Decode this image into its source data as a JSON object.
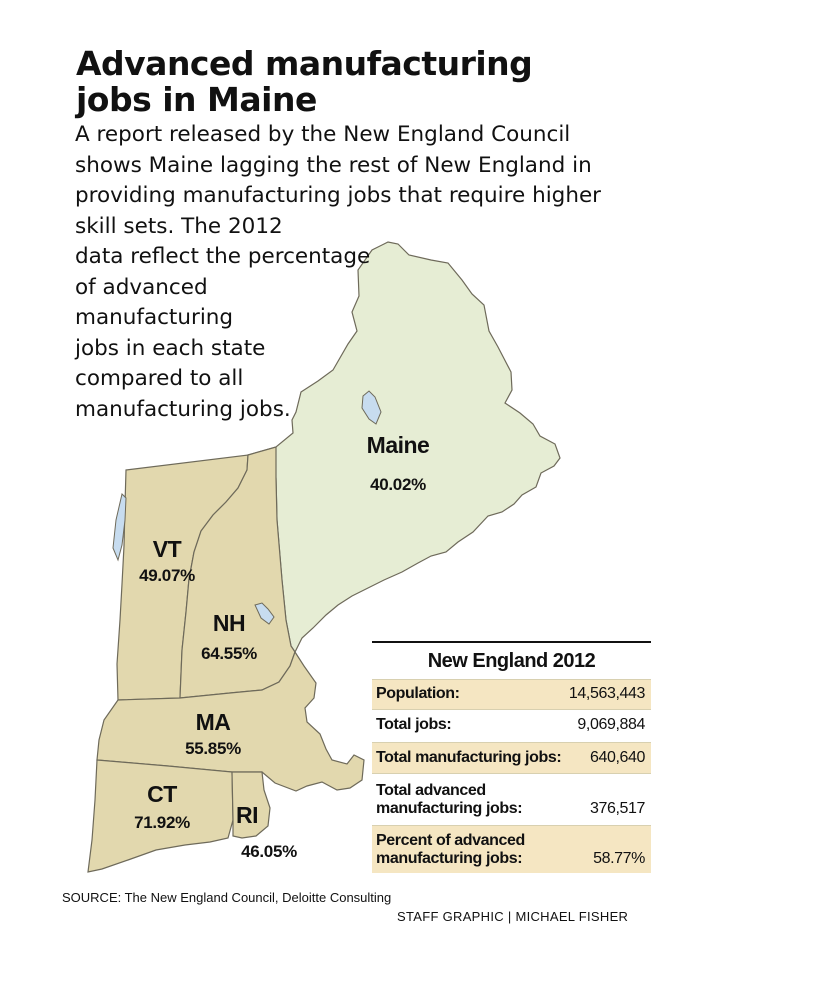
{
  "title": "Advanced manufacturing jobs in Maine",
  "intro_lines": [
    "A report released by the New England Council",
    "shows Maine lagging the rest of New England in",
    "providing manufacturing jobs that require higher",
    "skill sets. The 2012",
    "data reflect the percentage",
    "of advanced",
    "manufacturing",
    "jobs in each state",
    "compared to all",
    "manufacturing jobs."
  ],
  "colors": {
    "maine_fill": "#e6edd4",
    "other_states_fill": "#e2d8ae",
    "water": "#c7dcef",
    "border": "#6e6a5a",
    "table_shade": "#f5e6c2"
  },
  "states": [
    {
      "abbr": "Maine",
      "percent": "40.02%"
    },
    {
      "abbr": "VT",
      "percent": "49.07%"
    },
    {
      "abbr": "NH",
      "percent": "64.55%"
    },
    {
      "abbr": "MA",
      "percent": "55.85%"
    },
    {
      "abbr": "CT",
      "percent": "71.92%"
    },
    {
      "abbr": "RI",
      "percent": "46.05%"
    }
  ],
  "panel": {
    "title": "New England 2012",
    "rows": [
      {
        "label": "Population:",
        "value": "14,563,443",
        "shaded": true
      },
      {
        "label": "Total jobs:",
        "value": "9,069,884",
        "shaded": false
      },
      {
        "label": "Total manufacturing jobs:",
        "value": "640,640",
        "shaded": true
      },
      {
        "label_lines": [
          "Total advanced",
          "manufacturing jobs:"
        ],
        "value": "376,517",
        "shaded": false
      },
      {
        "label_lines": [
          "Percent of advanced",
          "manufacturing jobs:"
        ],
        "value": "58.77%",
        "shaded": true
      }
    ]
  },
  "source": "SOURCE: The New England Council, Deloitte Consulting",
  "credit": "STAFF GRAPHIC | MICHAEL FISHER"
}
